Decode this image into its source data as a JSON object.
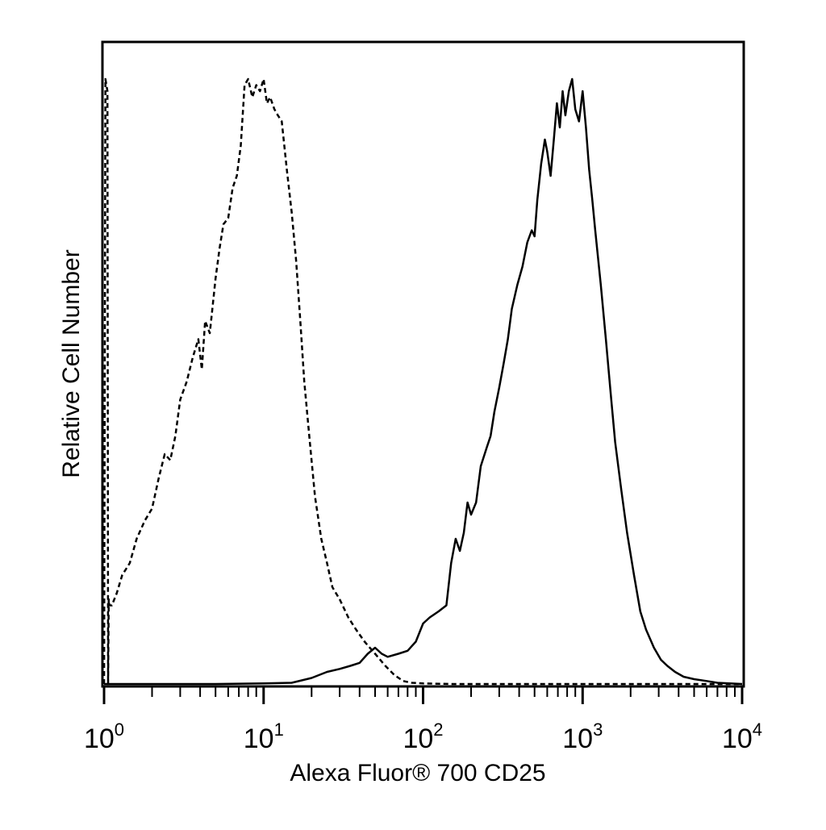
{
  "chart_data": {
    "type": "line",
    "title": "",
    "xlabel": "Alexa Fluor® 700 CD25",
    "ylabel": "Relative Cell Number",
    "x_scale": "log",
    "xlim": [
      1,
      10000
    ],
    "ylim": [
      0,
      1.0
    ],
    "grid": false,
    "legend": "none",
    "x_ticks": [
      {
        "base": "10",
        "exp": "0",
        "value": 1
      },
      {
        "base": "10",
        "exp": "1",
        "value": 10
      },
      {
        "base": "10",
        "exp": "2",
        "value": 100
      },
      {
        "base": "10",
        "exp": "3",
        "value": 1000
      },
      {
        "base": "10",
        "exp": "4",
        "value": 10000
      }
    ],
    "series": [
      {
        "style": "dashed",
        "color": "#000000",
        "x": [
          1.0,
          1.02,
          1.05,
          1.06,
          1.07,
          1.08,
          1.12,
          1.2,
          1.3,
          1.45,
          1.6,
          1.8,
          2.0,
          2.2,
          2.4,
          2.6,
          2.8,
          3.0,
          3.3,
          3.6,
          3.9,
          4.1,
          4.3,
          4.6,
          5.0,
          5.3,
          5.6,
          6.0,
          6.4,
          6.8,
          7.2,
          7.6,
          8.0,
          8.5,
          9.0,
          9.5,
          10.0,
          10.5,
          11.0,
          11.7,
          12.3,
          13.0,
          14.0,
          15.0,
          16.0,
          17.0,
          18.0,
          19.5,
          21.0,
          23.0,
          25.0,
          27.0,
          30.0,
          34.0,
          38.0,
          43.0,
          50.0,
          58.0,
          66.0,
          75.0,
          85.0,
          100.0,
          150.0,
          300.0,
          1000.0,
          5000.0,
          10000.0
        ],
        "y": [
          0.0,
          1.0,
          0.98,
          0.0,
          0.14,
          0.13,
          0.13,
          0.15,
          0.18,
          0.2,
          0.24,
          0.27,
          0.29,
          0.34,
          0.38,
          0.37,
          0.41,
          0.47,
          0.5,
          0.54,
          0.57,
          0.52,
          0.6,
          0.58,
          0.67,
          0.72,
          0.76,
          0.77,
          0.82,
          0.84,
          0.89,
          0.99,
          1.0,
          0.97,
          0.99,
          0.98,
          1.0,
          0.96,
          0.97,
          0.95,
          0.94,
          0.93,
          0.85,
          0.78,
          0.7,
          0.6,
          0.5,
          0.4,
          0.31,
          0.24,
          0.2,
          0.16,
          0.14,
          0.11,
          0.09,
          0.07,
          0.05,
          0.03,
          0.015,
          0.005,
          0.002,
          0.001,
          0.0,
          0.0,
          0.0,
          0.0,
          0.0
        ]
      },
      {
        "style": "solid",
        "color": "#000000",
        "x": [
          1.0,
          5.0,
          10.0,
          15.0,
          20.0,
          25.0,
          30.0,
          35.0,
          40.0,
          45.0,
          50.0,
          55.0,
          60.0,
          70.0,
          80.0,
          90.0,
          100.0,
          110.0,
          125.0,
          140.0,
          150.0,
          160.0,
          170.0,
          180.0,
          190.0,
          200.0,
          215.0,
          230.0,
          250.0,
          265.0,
          280.0,
          300.0,
          320.0,
          340.0,
          360.0,
          390.0,
          420.0,
          450.0,
          480.0,
          500.0,
          520.0,
          550.0,
          580.0,
          600.0,
          630.0,
          660.0,
          690.0,
          720.0,
          750.0,
          780.0,
          820.0,
          860.0,
          900.0,
          950.0,
          1000.0,
          1050.0,
          1100.0,
          1150.0,
          1200.0,
          1300.0,
          1400.0,
          1500.0,
          1600.0,
          1750.0,
          1900.0,
          2100.0,
          2300.0,
          2500.0,
          2800.0,
          3100.0,
          3400.0,
          3800.0,
          4300.0,
          5000.0,
          6000.0,
          7000.0,
          10000.0
        ],
        "y": [
          0.0,
          0.0,
          0.001,
          0.002,
          0.01,
          0.02,
          0.025,
          0.03,
          0.035,
          0.05,
          0.06,
          0.05,
          0.045,
          0.05,
          0.055,
          0.07,
          0.1,
          0.11,
          0.12,
          0.13,
          0.2,
          0.24,
          0.22,
          0.25,
          0.3,
          0.28,
          0.3,
          0.36,
          0.39,
          0.41,
          0.45,
          0.49,
          0.53,
          0.57,
          0.62,
          0.66,
          0.69,
          0.73,
          0.75,
          0.74,
          0.8,
          0.86,
          0.9,
          0.88,
          0.84,
          0.9,
          0.96,
          0.92,
          0.98,
          0.94,
          0.98,
          1.0,
          0.95,
          0.93,
          0.98,
          0.92,
          0.85,
          0.8,
          0.75,
          0.66,
          0.57,
          0.48,
          0.4,
          0.32,
          0.25,
          0.18,
          0.12,
          0.09,
          0.06,
          0.04,
          0.03,
          0.02,
          0.012,
          0.008,
          0.005,
          0.002,
          0.0
        ]
      }
    ]
  }
}
